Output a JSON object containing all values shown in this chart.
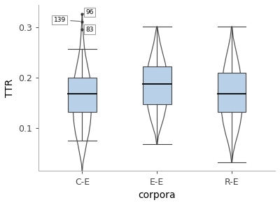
{
  "categories": [
    "C-E",
    "E-E",
    "R-E"
  ],
  "xlabel": "corpora",
  "ylabel": "TTR",
  "ylim": [
    0.015,
    0.345
  ],
  "yticks": [
    0.1,
    0.2,
    0.3
  ],
  "box_color": "#b8d0e8",
  "box_edge_color": "#444444",
  "violin_face_color": "#ffffff",
  "violin_edge_color": "#555555",
  "median_color": "#111111",
  "background_color": "#ffffff",
  "CE": {
    "median": 0.168,
    "q1": 0.132,
    "q3": 0.2,
    "whisker_low": 0.075,
    "whisker_high": 0.258,
    "outliers": [
      0.296,
      0.312,
      0.327
    ],
    "outlier_labels": [
      "83",
      "139",
      "96"
    ],
    "violin_y": [
      0.015,
      0.03,
      0.05,
      0.07,
      0.09,
      0.11,
      0.13,
      0.15,
      0.168,
      0.185,
      0.2,
      0.215,
      0.23,
      0.245,
      0.26,
      0.28,
      0.31,
      0.327
    ],
    "violin_hw": [
      0.002,
      0.01,
      0.035,
      0.06,
      0.09,
      0.11,
      0.12,
      0.125,
      0.128,
      0.12,
      0.105,
      0.085,
      0.065,
      0.045,
      0.03,
      0.018,
      0.006,
      0.002
    ]
  },
  "EE": {
    "median": 0.188,
    "q1": 0.148,
    "q3": 0.222,
    "whisker_low": 0.068,
    "whisker_high": 0.302,
    "violin_y": [
      0.068,
      0.085,
      0.1,
      0.12,
      0.14,
      0.16,
      0.18,
      0.188,
      0.2,
      0.215,
      0.23,
      0.25,
      0.27,
      0.29,
      0.302
    ],
    "violin_hw": [
      0.004,
      0.02,
      0.05,
      0.09,
      0.12,
      0.14,
      0.148,
      0.15,
      0.145,
      0.13,
      0.11,
      0.075,
      0.042,
      0.018,
      0.004
    ]
  },
  "RE": {
    "median": 0.168,
    "q1": 0.132,
    "q3": 0.21,
    "whisker_low": 0.032,
    "whisker_high": 0.302,
    "violin_y": [
      0.032,
      0.05,
      0.07,
      0.09,
      0.11,
      0.13,
      0.15,
      0.168,
      0.185,
      0.2,
      0.22,
      0.24,
      0.26,
      0.28,
      0.302
    ],
    "violin_hw": [
      0.002,
      0.018,
      0.048,
      0.085,
      0.115,
      0.135,
      0.145,
      0.148,
      0.14,
      0.125,
      0.105,
      0.078,
      0.048,
      0.02,
      0.004
    ]
  }
}
